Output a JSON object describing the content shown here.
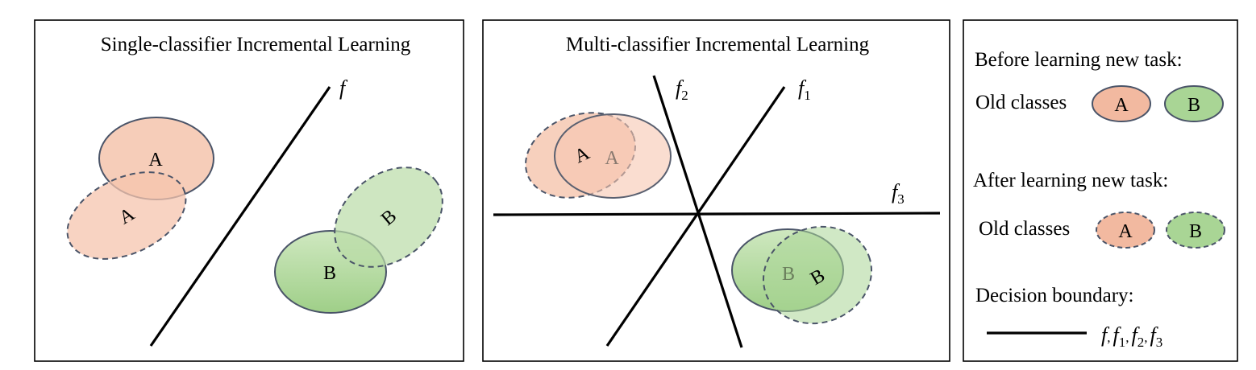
{
  "panels": {
    "single": {
      "title": "Single-classifier Incremental Learning",
      "boundary_label": "f",
      "old_a": "A",
      "new_a": "A",
      "old_b": "B",
      "new_b": "B"
    },
    "multi": {
      "title": "Multi-classifier Incremental Learning",
      "boundary_labels": {
        "f1_base": "f",
        "f1_sub": "1",
        "f2_base": "f",
        "f2_sub": "2",
        "f3_base": "f",
        "f3_sub": "3"
      },
      "old_a": "A",
      "new_a": "A",
      "old_b": "B",
      "new_b": "B"
    }
  },
  "legend": {
    "before_heading": "Before learning new task:",
    "before_label": "Old classes",
    "before_a": "A",
    "before_b": "B",
    "after_heading": "After learning new task:",
    "after_label": "Old classes",
    "after_a": "A",
    "after_b": "B",
    "decision_heading": "Decision boundary:",
    "decision_f": "f",
    "decision_f1": "f",
    "decision_f1_sub": "1",
    "decision_f2": "f",
    "decision_f2_sub": "2",
    "decision_f3": "f",
    "decision_f3_sub": "3",
    "sep": ","
  },
  "colors": {
    "class_a_fill": "#f7c9b3",
    "class_a_fill_after": "#f2b9a0",
    "class_b_fill": "#bfe0ae",
    "class_b_fill_after": "#a9d595",
    "outline": "#4a5468"
  }
}
